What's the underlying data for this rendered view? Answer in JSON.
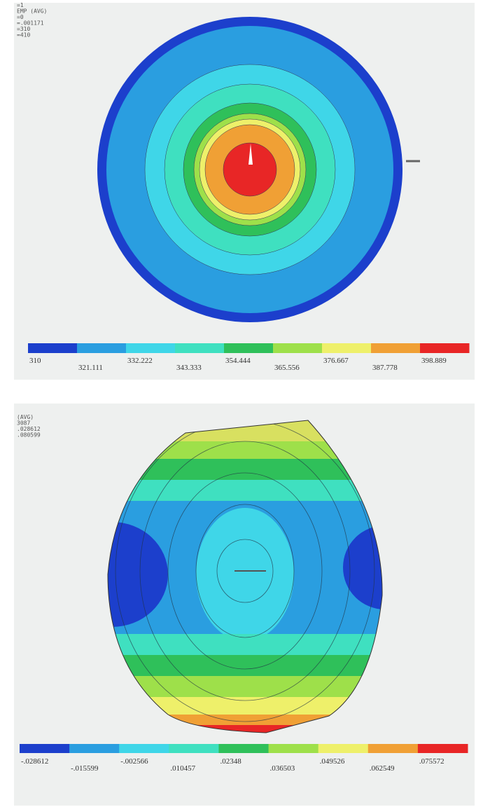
{
  "panels": [
    {
      "header": [
        "=1",
        "EMP  (AVG)",
        "=0",
        "=.001171",
        "=310",
        "=410"
      ],
      "legend": {
        "colors": [
          "#1c3fcc",
          "#2a9ee0",
          "#3fd6e8",
          "#3fe0c0",
          "#2fc05a",
          "#9ee04a",
          "#eef06a",
          "#f0a035",
          "#e82626"
        ],
        "labels": [
          "310",
          "321.111",
          "332.222",
          "343.333",
          "354.444",
          "365.556",
          "376.667",
          "387.778",
          "398.889"
        ]
      }
    },
    {
      "header": [
        "(AVG)",
        "3087",
        ".028612",
        ".080599"
      ],
      "legend": {
        "colors": [
          "#1c3fcc",
          "#2a9ee0",
          "#3fd6e8",
          "#3fe0c0",
          "#2fc05a",
          "#9ee04a",
          "#eef06a",
          "#f0a035",
          "#e82626"
        ],
        "labels": [
          "-.028612",
          "-.015599",
          "-.002566",
          ".010457",
          ".02348",
          ".036503",
          ".049526",
          ".062549",
          ".075572"
        ]
      }
    }
  ]
}
